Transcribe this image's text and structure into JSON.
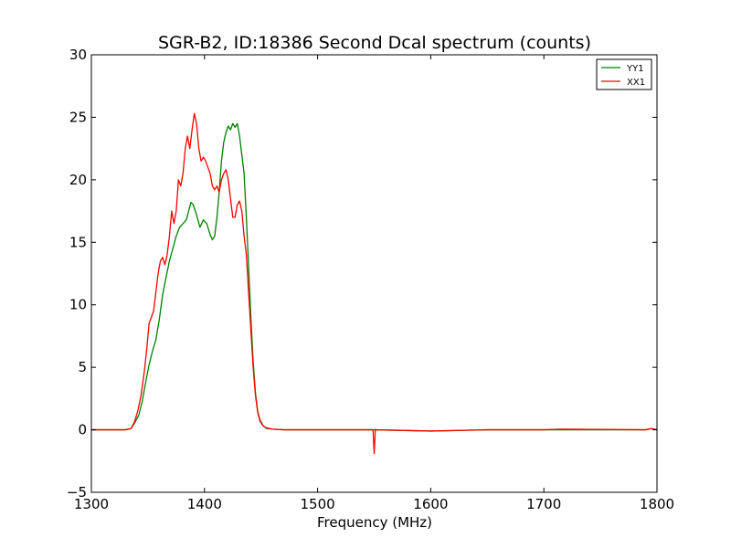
{
  "chart_data": {
    "type": "line",
    "title": "SGR-B2, ID:18386 Second Dcal spectrum (counts)",
    "xlabel": "Frequency (MHz)",
    "ylabel": "",
    "xlim": [
      1300,
      1800
    ],
    "ylim": [
      -5,
      30
    ],
    "xticks": [
      "1300",
      "1400",
      "1500",
      "1600",
      "1700",
      "1800"
    ],
    "yticks": [
      "−5",
      "0",
      "5",
      "10",
      "15",
      "20",
      "25",
      "30"
    ],
    "grid": false,
    "legend_position": "top-right",
    "series": [
      {
        "name": "YY1",
        "color": "#008000",
        "points": [
          [
            1300,
            0
          ],
          [
            1330,
            0
          ],
          [
            1335,
            0.1
          ],
          [
            1338,
            0.5
          ],
          [
            1342,
            1.2
          ],
          [
            1345,
            2.3
          ],
          [
            1348,
            3.8
          ],
          [
            1351,
            5.2
          ],
          [
            1354,
            6.3
          ],
          [
            1357,
            7.2
          ],
          [
            1360,
            8.8
          ],
          [
            1363,
            10.8
          ],
          [
            1366,
            12.2
          ],
          [
            1369,
            13.5
          ],
          [
            1372,
            14.5
          ],
          [
            1375,
            15.5
          ],
          [
            1378,
            16.2
          ],
          [
            1381,
            16.5
          ],
          [
            1384,
            16.8
          ],
          [
            1386,
            17.5
          ],
          [
            1388,
            18.2
          ],
          [
            1390,
            18.0
          ],
          [
            1393,
            17.2
          ],
          [
            1396,
            16.2
          ],
          [
            1399,
            16.8
          ],
          [
            1402,
            16.5
          ],
          [
            1405,
            15.6
          ],
          [
            1407,
            15.2
          ],
          [
            1409,
            15.5
          ],
          [
            1411,
            17.0
          ],
          [
            1413,
            19.0
          ],
          [
            1415,
            21.5
          ],
          [
            1417,
            23.0
          ],
          [
            1419,
            23.8
          ],
          [
            1421,
            24.3
          ],
          [
            1423,
            24.0
          ],
          [
            1425,
            24.5
          ],
          [
            1427,
            24.2
          ],
          [
            1429,
            24.5
          ],
          [
            1431,
            23.5
          ],
          [
            1433,
            22.0
          ],
          [
            1435,
            20.5
          ],
          [
            1437,
            17.0
          ],
          [
            1439,
            13.0
          ],
          [
            1441,
            9.0
          ],
          [
            1443,
            5.5
          ],
          [
            1445,
            3.0
          ],
          [
            1447,
            1.5
          ],
          [
            1449,
            0.8
          ],
          [
            1452,
            0.3
          ],
          [
            1455,
            0.1
          ],
          [
            1460,
            0.05
          ],
          [
            1470,
            0
          ],
          [
            1480,
            0
          ],
          [
            1500,
            0
          ],
          [
            1550,
            0
          ],
          [
            1600,
            -0.1
          ],
          [
            1650,
            0
          ],
          [
            1700,
            0
          ],
          [
            1790,
            0
          ],
          [
            1795,
            0.1
          ],
          [
            1800,
            0
          ]
        ]
      },
      {
        "name": "XX1",
        "color": "#ff0000",
        "points": [
          [
            1300,
            0
          ],
          [
            1330,
            0
          ],
          [
            1335,
            0.1
          ],
          [
            1338,
            0.6
          ],
          [
            1341,
            1.5
          ],
          [
            1344,
            2.8
          ],
          [
            1347,
            4.8
          ],
          [
            1349,
            6.5
          ],
          [
            1351,
            8.5
          ],
          [
            1353,
            9.0
          ],
          [
            1355,
            9.5
          ],
          [
            1357,
            11.0
          ],
          [
            1359,
            12.5
          ],
          [
            1361,
            13.5
          ],
          [
            1363,
            13.8
          ],
          [
            1365,
            13.2
          ],
          [
            1367,
            14.0
          ],
          [
            1369,
            15.5
          ],
          [
            1371,
            17.5
          ],
          [
            1373,
            16.5
          ],
          [
            1375,
            17.5
          ],
          [
            1377,
            20.0
          ],
          [
            1379,
            19.5
          ],
          [
            1381,
            20.5
          ],
          [
            1383,
            22.5
          ],
          [
            1385,
            23.5
          ],
          [
            1387,
            22.5
          ],
          [
            1389,
            24.0
          ],
          [
            1391,
            25.3
          ],
          [
            1393,
            24.5
          ],
          [
            1395,
            22.5
          ],
          [
            1397,
            21.5
          ],
          [
            1399,
            21.8
          ],
          [
            1401,
            21.5
          ],
          [
            1403,
            21.0
          ],
          [
            1405,
            20.5
          ],
          [
            1407,
            19.5
          ],
          [
            1409,
            19.2
          ],
          [
            1411,
            19.5
          ],
          [
            1413,
            19.0
          ],
          [
            1415,
            20.0
          ],
          [
            1417,
            20.5
          ],
          [
            1419,
            20.8
          ],
          [
            1421,
            20.0
          ],
          [
            1423,
            18.5
          ],
          [
            1425,
            17.0
          ],
          [
            1427,
            17.0
          ],
          [
            1429,
            18.0
          ],
          [
            1431,
            18.3
          ],
          [
            1433,
            17.5
          ],
          [
            1435,
            15.5
          ],
          [
            1437,
            14.0
          ],
          [
            1439,
            11.0
          ],
          [
            1441,
            8.0
          ],
          [
            1443,
            5.0
          ],
          [
            1445,
            2.8
          ],
          [
            1447,
            1.4
          ],
          [
            1449,
            0.7
          ],
          [
            1452,
            0.3
          ],
          [
            1455,
            0.15
          ],
          [
            1460,
            0.05
          ],
          [
            1470,
            0
          ],
          [
            1500,
            0
          ],
          [
            1549,
            0
          ],
          [
            1550,
            -1.9
          ],
          [
            1551,
            0
          ],
          [
            1600,
            -0.1
          ],
          [
            1650,
            0
          ],
          [
            1700,
            0
          ],
          [
            1715,
            0.05
          ],
          [
            1790,
            0
          ],
          [
            1795,
            0.1
          ],
          [
            1800,
            0
          ]
        ]
      }
    ]
  }
}
